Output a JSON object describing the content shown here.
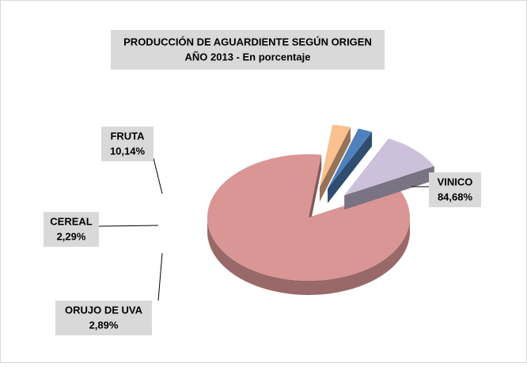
{
  "chart_data": {
    "type": "pie",
    "title": "PRODUCCIÓN DE AGUARDIENTE SEGÚN ORIGEN",
    "subtitle": "AÑO 2013 - En porcentaje",
    "categories": [
      "VINICO",
      "ORUJO DE UVA",
      "CEREAL",
      "FRUTA"
    ],
    "values": [
      84.68,
      2.89,
      2.29,
      10.14
    ],
    "value_labels": [
      "84,68%",
      "2,89%",
      "2,29%",
      "10,14%"
    ],
    "colors": [
      "#d99694",
      "#fac090",
      "#4f81bd",
      "#ccc0da"
    ]
  }
}
